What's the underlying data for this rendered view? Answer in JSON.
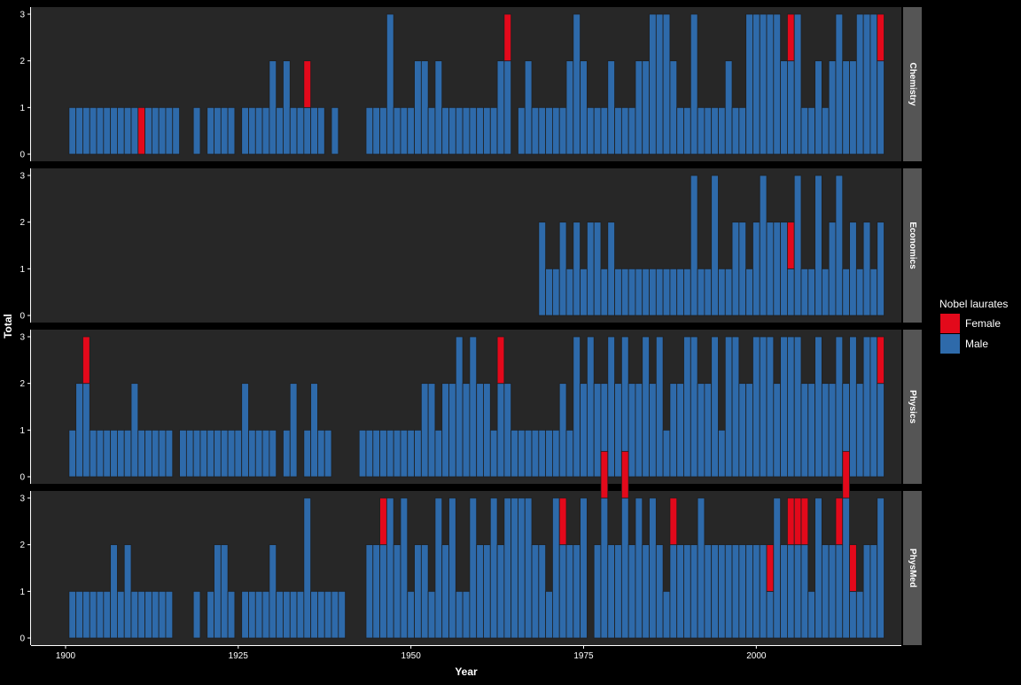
{
  "chart_data": {
    "type": "bar",
    "stacked": true,
    "xlabel": "Year",
    "ylabel": "Total",
    "xlim": [
      1895,
      2021
    ],
    "ylim": [
      0,
      3
    ],
    "x_ticks": [
      1900,
      1925,
      1950,
      1975,
      2000
    ],
    "y_ticks": [
      0,
      1,
      2,
      3
    ],
    "grid": false,
    "legend": {
      "title": "Nobel laurates",
      "position": "right",
      "items": [
        {
          "label": "Female",
          "color": "#e3091b"
        },
        {
          "label": "Male",
          "color": "#2e6aaa"
        }
      ]
    },
    "colors": {
      "female": "#e3091b",
      "male": "#2e6aaa",
      "panel_background": "#272727",
      "strip_background": "#555555",
      "page_background": "#000000",
      "text": "#ffffff"
    },
    "panels": [
      {
        "name": "Chemistry",
        "male": [
          1,
          1,
          1,
          1,
          1,
          1,
          1,
          1,
          1,
          1,
          0,
          1,
          1,
          1,
          1,
          1,
          0,
          0,
          1,
          0,
          1,
          1,
          1,
          1,
          0,
          1,
          1,
          1,
          1,
          2,
          1,
          2,
          1,
          1,
          1,
          1,
          1,
          0,
          1,
          0,
          0,
          0,
          0,
          1,
          1,
          1,
          3,
          1,
          1,
          1,
          2,
          2,
          1,
          2,
          1,
          1,
          1,
          1,
          1,
          1,
          1,
          1,
          2,
          2,
          0,
          1,
          2,
          1,
          1,
          1,
          1,
          1,
          2,
          3,
          2,
          1,
          1,
          1,
          2,
          1,
          1,
          1,
          2,
          2,
          3,
          3,
          3,
          2,
          1,
          1,
          3,
          1,
          1,
          1,
          1,
          2,
          1,
          1,
          3,
          3,
          3,
          3,
          3,
          2,
          2,
          3,
          1,
          1,
          2,
          1,
          2,
          3,
          2,
          2,
          3,
          3,
          3,
          2
        ],
        "female": [
          0,
          0,
          0,
          0,
          0,
          0,
          0,
          0,
          0,
          0,
          1,
          0,
          0,
          0,
          0,
          0,
          0,
          0,
          0,
          0,
          0,
          0,
          0,
          0,
          0,
          0,
          0,
          0,
          0,
          0,
          0,
          0,
          0,
          0,
          1,
          0,
          0,
          0,
          0,
          0,
          0,
          0,
          0,
          0,
          0,
          0,
          0,
          0,
          0,
          0,
          0,
          0,
          0,
          0,
          0,
          0,
          0,
          0,
          0,
          0,
          0,
          0,
          0,
          1,
          0,
          0,
          0,
          0,
          0,
          0,
          0,
          0,
          0,
          0,
          0,
          0,
          0,
          0,
          0,
          0,
          0,
          0,
          0,
          0,
          0,
          0,
          0,
          0,
          0,
          0,
          0,
          0,
          0,
          0,
          0,
          0,
          0,
          0,
          0,
          0,
          0,
          0,
          0,
          0,
          1,
          0,
          0,
          0,
          0,
          0,
          0,
          0,
          0,
          0,
          0,
          0,
          0,
          1
        ]
      },
      {
        "name": "Economics",
        "male": [
          0,
          0,
          0,
          0,
          0,
          0,
          0,
          0,
          0,
          0,
          0,
          0,
          0,
          0,
          0,
          0,
          0,
          0,
          0,
          0,
          0,
          0,
          0,
          0,
          0,
          0,
          0,
          0,
          0,
          0,
          0,
          0,
          0,
          0,
          0,
          0,
          0,
          0,
          0,
          0,
          0,
          0,
          0,
          0,
          0,
          0,
          0,
          0,
          0,
          0,
          0,
          0,
          0,
          0,
          0,
          0,
          0,
          0,
          0,
          0,
          0,
          0,
          0,
          0,
          0,
          0,
          0,
          0,
          2,
          1,
          1,
          2,
          1,
          2,
          1,
          2,
          2,
          1,
          2,
          1,
          1,
          1,
          1,
          1,
          1,
          1,
          1,
          1,
          1,
          1,
          3,
          1,
          1,
          3,
          1,
          1,
          2,
          2,
          1,
          2,
          3,
          2,
          2,
          2,
          1,
          3,
          1,
          1,
          3,
          1,
          2,
          3,
          1,
          2,
          1,
          2,
          1,
          2
        ],
        "female": [
          0,
          0,
          0,
          0,
          0,
          0,
          0,
          0,
          0,
          0,
          0,
          0,
          0,
          0,
          0,
          0,
          0,
          0,
          0,
          0,
          0,
          0,
          0,
          0,
          0,
          0,
          0,
          0,
          0,
          0,
          0,
          0,
          0,
          0,
          0,
          0,
          0,
          0,
          0,
          0,
          0,
          0,
          0,
          0,
          0,
          0,
          0,
          0,
          0,
          0,
          0,
          0,
          0,
          0,
          0,
          0,
          0,
          0,
          0,
          0,
          0,
          0,
          0,
          0,
          0,
          0,
          0,
          0,
          0,
          0,
          0,
          0,
          0,
          0,
          0,
          0,
          0,
          0,
          0,
          0,
          0,
          0,
          0,
          0,
          0,
          0,
          0,
          0,
          0,
          0,
          0,
          0,
          0,
          0,
          0,
          0,
          0,
          0,
          0,
          0,
          0,
          0,
          0,
          0,
          1,
          0,
          0,
          0,
          0,
          0,
          0,
          0,
          0,
          0,
          0,
          0,
          0,
          0
        ]
      },
      {
        "name": "Physics",
        "male": [
          1,
          2,
          2,
          1,
          1,
          1,
          1,
          1,
          1,
          2,
          1,
          1,
          1,
          1,
          1,
          0,
          1,
          1,
          1,
          1,
          1,
          1,
          1,
          1,
          1,
          2,
          1,
          1,
          1,
          1,
          0,
          1,
          2,
          0,
          1,
          2,
          1,
          1,
          0,
          0,
          0,
          0,
          1,
          1,
          1,
          1,
          1,
          1,
          1,
          1,
          1,
          2,
          2,
          1,
          2,
          2,
          3,
          2,
          3,
          2,
          2,
          1,
          2,
          2,
          1,
          1,
          1,
          1,
          1,
          1,
          1,
          2,
          1,
          3,
          2,
          3,
          2,
          2,
          3,
          2,
          3,
          2,
          2,
          3,
          2,
          3,
          1,
          2,
          2,
          3,
          3,
          2,
          2,
          3,
          1,
          3,
          3,
          2,
          2,
          3,
          3,
          3,
          2,
          3,
          3,
          3,
          2,
          2,
          3,
          2,
          2,
          3,
          2,
          3,
          2,
          3,
          3,
          2
        ],
        "female": [
          0,
          0,
          1,
          0,
          0,
          0,
          0,
          0,
          0,
          0,
          0,
          0,
          0,
          0,
          0,
          0,
          0,
          0,
          0,
          0,
          0,
          0,
          0,
          0,
          0,
          0,
          0,
          0,
          0,
          0,
          0,
          0,
          0,
          0,
          0,
          0,
          0,
          0,
          0,
          0,
          0,
          0,
          0,
          0,
          0,
          0,
          0,
          0,
          0,
          0,
          0,
          0,
          0,
          0,
          0,
          0,
          0,
          0,
          0,
          0,
          0,
          0,
          1,
          0,
          0,
          0,
          0,
          0,
          0,
          0,
          0,
          0,
          0,
          0,
          0,
          0,
          0,
          0,
          0,
          0,
          0,
          0,
          0,
          0,
          0,
          0,
          0,
          0,
          0,
          0,
          0,
          0,
          0,
          0,
          0,
          0,
          0,
          0,
          0,
          0,
          0,
          0,
          0,
          0,
          0,
          0,
          0,
          0,
          0,
          0,
          0,
          0,
          0,
          0,
          0,
          0,
          0,
          1
        ]
      },
      {
        "name": "PhysMed",
        "male": [
          1,
          1,
          1,
          1,
          1,
          1,
          2,
          1,
          2,
          1,
          1,
          1,
          1,
          1,
          1,
          0,
          0,
          0,
          1,
          0,
          1,
          2,
          2,
          1,
          0,
          1,
          1,
          1,
          1,
          2,
          1,
          1,
          1,
          1,
          3,
          1,
          1,
          1,
          1,
          1,
          0,
          0,
          0,
          2,
          2,
          2,
          3,
          2,
          3,
          1,
          2,
          2,
          1,
          3,
          2,
          3,
          1,
          1,
          3,
          2,
          2,
          3,
          2,
          3,
          3,
          3,
          3,
          2,
          2,
          1,
          3,
          2,
          2,
          2,
          3,
          0,
          2,
          3,
          2,
          2,
          3,
          2,
          3,
          2,
          3,
          2,
          1,
          2,
          2,
          2,
          2,
          3,
          2,
          2,
          2,
          2,
          2,
          2,
          2,
          2,
          2,
          1,
          3,
          2,
          2,
          2,
          2,
          1,
          3,
          2,
          2,
          2,
          3,
          1,
          1,
          2,
          2,
          3
        ],
        "female": [
          0,
          0,
          0,
          0,
          0,
          0,
          0,
          0,
          0,
          0,
          0,
          0,
          0,
          0,
          0,
          0,
          0,
          0,
          0,
          0,
          0,
          0,
          0,
          0,
          0,
          0,
          0,
          0,
          0,
          0,
          0,
          0,
          0,
          0,
          0,
          0,
          0,
          0,
          0,
          0,
          0,
          0,
          0,
          0,
          0,
          1,
          0,
          0,
          0,
          0,
          0,
          0,
          0,
          0,
          0,
          0,
          0,
          0,
          0,
          0,
          0,
          0,
          0,
          0,
          0,
          0,
          0,
          0,
          0,
          0,
          0,
          1,
          0,
          0,
          0,
          0,
          0,
          1,
          0,
          0,
          1,
          0,
          0,
          0,
          0,
          0,
          0,
          1,
          0,
          0,
          0,
          0,
          0,
          0,
          0,
          0,
          0,
          0,
          0,
          0,
          0,
          1,
          0,
          0,
          1,
          1,
          1,
          0,
          0,
          0,
          0,
          1,
          1,
          1,
          0,
          0,
          0,
          0
        ]
      }
    ]
  }
}
